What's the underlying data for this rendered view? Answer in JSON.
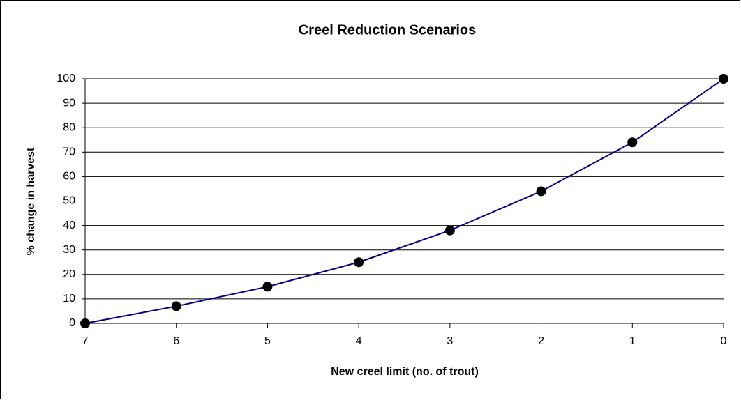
{
  "chart_data": {
    "type": "line",
    "title": "Creel Reduction Scenarios",
    "x_label": "New creel limit (no. of trout)",
    "y_label": "% change in harvest",
    "categories": [
      "7",
      "6",
      "5",
      "4",
      "3",
      "2",
      "1",
      "0"
    ],
    "series": [
      {
        "name": "% change in harvest",
        "color": "#000080",
        "values": [
          0,
          7,
          15,
          25,
          38,
          54,
          74,
          100
        ]
      }
    ],
    "ylim": [
      0,
      100
    ],
    "yticks": [
      0,
      10,
      20,
      30,
      40,
      50,
      60,
      70,
      80,
      90,
      100
    ],
    "grid": true
  }
}
